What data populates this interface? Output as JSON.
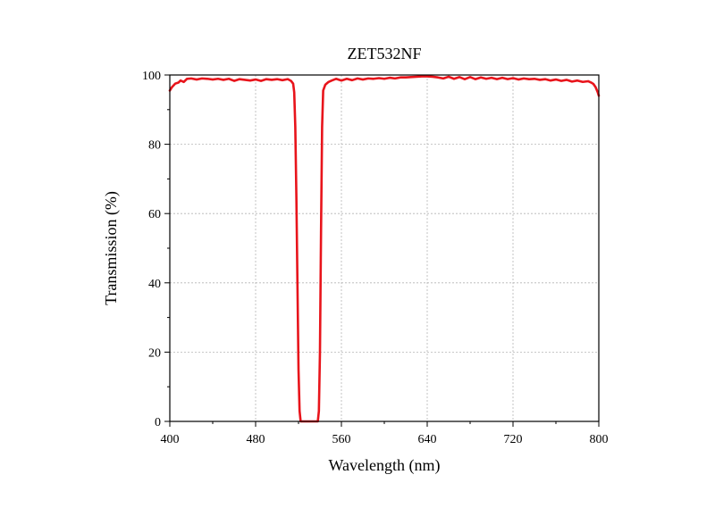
{
  "chart_data": {
    "type": "line",
    "title": "ZET532NF",
    "xlabel": "Wavelength (nm)",
    "ylabel": "Transmission (%)",
    "xlim": [
      400,
      800
    ],
    "ylim": [
      0,
      100
    ],
    "xticks": [
      400,
      480,
      560,
      640,
      720,
      800
    ],
    "yticks": [
      0,
      20,
      40,
      60,
      80,
      100
    ],
    "grid": true,
    "series": [
      {
        "color": "#e8141b",
        "points": [
          [
            400,
            95.5
          ],
          [
            402,
            96.5
          ],
          [
            405,
            97.5
          ],
          [
            408,
            97.8
          ],
          [
            410,
            98.4
          ],
          [
            413,
            98.0
          ],
          [
            416,
            98.9
          ],
          [
            420,
            99.0
          ],
          [
            425,
            98.7
          ],
          [
            430,
            99.0
          ],
          [
            435,
            98.9
          ],
          [
            440,
            98.7
          ],
          [
            445,
            98.9
          ],
          [
            450,
            98.6
          ],
          [
            455,
            98.9
          ],
          [
            460,
            98.3
          ],
          [
            465,
            98.8
          ],
          [
            470,
            98.6
          ],
          [
            475,
            98.4
          ],
          [
            480,
            98.7
          ],
          [
            485,
            98.3
          ],
          [
            490,
            98.8
          ],
          [
            495,
            98.6
          ],
          [
            500,
            98.8
          ],
          [
            505,
            98.5
          ],
          [
            510,
            98.8
          ],
          [
            513,
            98.3
          ],
          [
            515,
            97.5
          ],
          [
            516,
            95.0
          ],
          [
            517,
            85.0
          ],
          [
            518,
            65.0
          ],
          [
            519,
            40.0
          ],
          [
            520,
            15.0
          ],
          [
            521,
            3.0
          ],
          [
            522,
            0.0
          ],
          [
            538,
            0.0
          ],
          [
            539,
            3.0
          ],
          [
            540,
            20.0
          ],
          [
            541,
            55.0
          ],
          [
            542,
            85.0
          ],
          [
            543,
            95.5
          ],
          [
            545,
            97.2
          ],
          [
            548,
            98.0
          ],
          [
            551,
            98.4
          ],
          [
            555,
            98.9
          ],
          [
            560,
            98.4
          ],
          [
            565,
            98.9
          ],
          [
            570,
            98.5
          ],
          [
            575,
            99.0
          ],
          [
            580,
            98.7
          ],
          [
            585,
            99.0
          ],
          [
            590,
            98.9
          ],
          [
            595,
            99.1
          ],
          [
            600,
            98.9
          ],
          [
            605,
            99.2
          ],
          [
            610,
            99.0
          ],
          [
            615,
            99.3
          ],
          [
            620,
            99.3
          ],
          [
            625,
            99.4
          ],
          [
            630,
            99.5
          ],
          [
            635,
            99.6
          ],
          [
            640,
            99.6
          ],
          [
            645,
            99.5
          ],
          [
            650,
            99.3
          ],
          [
            655,
            99.0
          ],
          [
            660,
            99.5
          ],
          [
            665,
            98.9
          ],
          [
            670,
            99.4
          ],
          [
            675,
            98.8
          ],
          [
            680,
            99.4
          ],
          [
            685,
            98.8
          ],
          [
            690,
            99.3
          ],
          [
            695,
            98.9
          ],
          [
            700,
            99.2
          ],
          [
            705,
            98.8
          ],
          [
            710,
            99.2
          ],
          [
            715,
            98.8
          ],
          [
            720,
            99.1
          ],
          [
            725,
            98.7
          ],
          [
            730,
            99.0
          ],
          [
            735,
            98.8
          ],
          [
            740,
            98.9
          ],
          [
            745,
            98.6
          ],
          [
            750,
            98.8
          ],
          [
            755,
            98.4
          ],
          [
            760,
            98.7
          ],
          [
            765,
            98.3
          ],
          [
            770,
            98.6
          ],
          [
            775,
            98.1
          ],
          [
            780,
            98.4
          ],
          [
            785,
            98.0
          ],
          [
            790,
            98.2
          ],
          [
            793,
            97.8
          ],
          [
            795,
            97.4
          ],
          [
            797,
            96.5
          ],
          [
            799,
            95.0
          ],
          [
            800,
            94.0
          ]
        ]
      }
    ]
  }
}
